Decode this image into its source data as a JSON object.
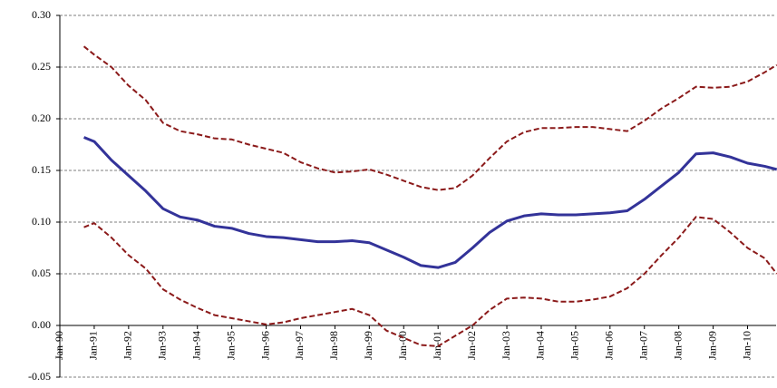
{
  "chart_data": {
    "type": "line",
    "x": [
      1990.7,
      1991.0,
      1991.5,
      1992.0,
      1992.5,
      1993.0,
      1993.5,
      1994.0,
      1994.5,
      1995.0,
      1995.5,
      1996.0,
      1996.5,
      1997.0,
      1997.5,
      1998.0,
      1998.5,
      1999.0,
      1999.5,
      2000.0,
      2000.5,
      2001.0,
      2001.5,
      2002.0,
      2002.5,
      2003.0,
      2003.5,
      2004.0,
      2004.5,
      2005.0,
      2005.5,
      2006.0,
      2006.5,
      2007.0,
      2007.5,
      2008.0,
      2008.5,
      2009.0,
      2009.5,
      2010.0,
      2010.5,
      2010.85
    ],
    "series": [
      {
        "color": "#333399",
        "style": "solid",
        "values": [
          0.182,
          0.178,
          0.16,
          0.145,
          0.13,
          0.113,
          0.105,
          0.102,
          0.096,
          0.094,
          0.089,
          0.086,
          0.085,
          0.083,
          0.081,
          0.081,
          0.082,
          0.08,
          0.073,
          0.066,
          0.058,
          0.056,
          0.061,
          0.075,
          0.09,
          0.101,
          0.106,
          0.108,
          0.107,
          0.107,
          0.108,
          0.109,
          0.111,
          0.122,
          0.135,
          0.148,
          0.166,
          0.167,
          0.163,
          0.157,
          0.154,
          0.151
        ]
      },
      {
        "color": "#8b1a1a",
        "style": "dashed",
        "values": [
          0.27,
          0.262,
          0.25,
          0.232,
          0.218,
          0.196,
          0.188,
          0.185,
          0.181,
          0.18,
          0.175,
          0.171,
          0.167,
          0.158,
          0.152,
          0.148,
          0.149,
          0.151,
          0.146,
          0.14,
          0.134,
          0.131,
          0.133,
          0.145,
          0.162,
          0.178,
          0.187,
          0.191,
          0.191,
          0.192,
          0.192,
          0.19,
          0.188,
          0.198,
          0.21,
          0.22,
          0.231,
          0.23,
          0.231,
          0.236,
          0.245,
          0.252
        ]
      },
      {
        "color": "#8b1a1a",
        "style": "dashed",
        "values": [
          0.095,
          0.099,
          0.085,
          0.068,
          0.055,
          0.035,
          0.025,
          0.017,
          0.01,
          0.007,
          0.004,
          0.001,
          0.003,
          0.007,
          0.01,
          0.013,
          0.016,
          0.01,
          -0.005,
          -0.012,
          -0.019,
          -0.02,
          -0.01,
          0.0,
          0.015,
          0.026,
          0.027,
          0.026,
          0.023,
          0.023,
          0.025,
          0.028,
          0.036,
          0.05,
          0.068,
          0.085,
          0.105,
          0.103,
          0.09,
          0.075,
          0.065,
          0.05
        ]
      }
    ],
    "xlim": [
      1990,
      2010.83
    ],
    "xticks": [
      {
        "value": 1990,
        "label": "Jan-90"
      },
      {
        "value": 1991,
        "label": "Jan-91"
      },
      {
        "value": 1992,
        "label": "Jan-92"
      },
      {
        "value": 1993,
        "label": "Jan-93"
      },
      {
        "value": 1994,
        "label": "Jan-94"
      },
      {
        "value": 1995,
        "label": "Jan-95"
      },
      {
        "value": 1996,
        "label": "Jan-96"
      },
      {
        "value": 1997,
        "label": "Jan-97"
      },
      {
        "value": 1998,
        "label": "Jan-98"
      },
      {
        "value": 1999,
        "label": "Jan-99"
      },
      {
        "value": 2000,
        "label": "Jan-00"
      },
      {
        "value": 2001,
        "label": "Jan-01"
      },
      {
        "value": 2002,
        "label": "Jan-02"
      },
      {
        "value": 2003,
        "label": "Jan-03"
      },
      {
        "value": 2004,
        "label": "Jan-04"
      },
      {
        "value": 2005,
        "label": "Jan-05"
      },
      {
        "value": 2006,
        "label": "Jan-06"
      },
      {
        "value": 2007,
        "label": "Jan-07"
      },
      {
        "value": 2008,
        "label": "Jan-08"
      },
      {
        "value": 2009,
        "label": "Jan-09"
      },
      {
        "value": 2010,
        "label": "Jan-10"
      }
    ],
    "ylim": [
      -0.05,
      0.3
    ],
    "yticks": [
      {
        "value": -0.05,
        "label": "-0.05"
      },
      {
        "value": 0,
        "label": "0.00"
      },
      {
        "value": 0.05,
        "label": "0.05"
      },
      {
        "value": 0.1,
        "label": "0.10"
      },
      {
        "value": 0.15,
        "label": "0.15"
      },
      {
        "value": 0.2,
        "label": "0.20"
      },
      {
        "value": 0.25,
        "label": "0.25"
      },
      {
        "value": 0.3,
        "label": "0.30"
      }
    ],
    "grid": true
  }
}
